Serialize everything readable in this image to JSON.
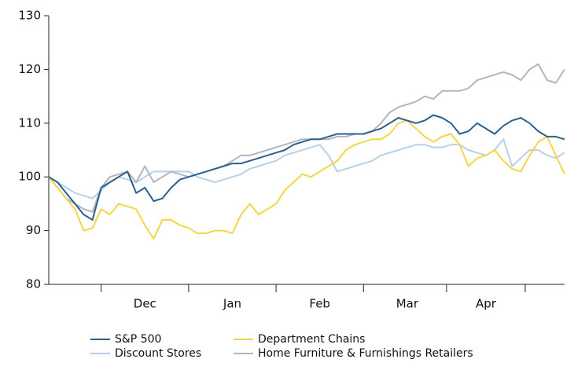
{
  "chart_data": {
    "type": "line",
    "categories": [
      null,
      null,
      null,
      null,
      null,
      null,
      null,
      null,
      null,
      null,
      null,
      "Dec",
      null,
      null,
      null,
      null,
      null,
      null,
      null,
      null,
      null,
      "Jan",
      null,
      null,
      null,
      null,
      null,
      null,
      null,
      null,
      null,
      "Feb",
      null,
      null,
      null,
      null,
      null,
      null,
      null,
      null,
      null,
      "Mar",
      null,
      null,
      null,
      null,
      null,
      null,
      null,
      null,
      "Apr",
      null,
      null,
      null,
      null,
      null,
      null,
      null,
      null,
      null
    ],
    "ylim": [
      80,
      130
    ],
    "yticks": [
      80,
      90,
      100,
      110,
      120,
      130
    ],
    "grid": false,
    "series": [
      {
        "name": "S&P 500",
        "color": "#2b5f8e",
        "values": [
          100,
          99,
          97,
          95,
          93,
          92,
          98,
          99,
          100,
          101,
          97,
          98,
          95.5,
          96,
          98,
          99.5,
          100,
          100.5,
          101,
          101.5,
          102,
          102.5,
          102.5,
          103,
          103.5,
          104,
          104.5,
          105,
          106,
          106.5,
          107,
          107,
          107.5,
          108,
          108,
          108,
          108,
          108.5,
          109,
          110,
          111,
          110.5,
          110,
          110.5,
          111.5,
          111,
          110,
          108,
          108.5,
          110,
          109,
          108,
          109.5,
          110.5,
          111,
          110,
          108.5,
          107.5,
          107.5,
          107
        ]
      },
      {
        "name": "Department Chains",
        "color": "#f5d547",
        "values": [
          100,
          98,
          96,
          94,
          90,
          90.5,
          94,
          93,
          95,
          94.5,
          94,
          91,
          88.5,
          92,
          92,
          91,
          90.5,
          89.5,
          89.5,
          90,
          90,
          89.5,
          93,
          95,
          93,
          94,
          95,
          97.5,
          99,
          100.5,
          100,
          101,
          102,
          103,
          105,
          106,
          106.5,
          107,
          107,
          108,
          110,
          110.5,
          109,
          107.5,
          106.5,
          107.5,
          108,
          106,
          102,
          103.5,
          104,
          105,
          103,
          101.5,
          101,
          104,
          106.5,
          107.5,
          104,
          100.5
        ]
      },
      {
        "name": "Discount Stores",
        "color": "#b8cfe6",
        "values": [
          100,
          99,
          98,
          97,
          96.5,
          96,
          97.5,
          99,
          100,
          99.5,
          99,
          100,
          101,
          101,
          101,
          101,
          101,
          100,
          99.5,
          99,
          99.5,
          100,
          100.5,
          101.5,
          102,
          102.5,
          103,
          104,
          104.5,
          105,
          105.5,
          106,
          104,
          101,
          101.5,
          102,
          102.5,
          103,
          104,
          104.5,
          105,
          105.5,
          106,
          106,
          105.5,
          105.5,
          106,
          106,
          105,
          104.5,
          104,
          105,
          107,
          102,
          103.5,
          105,
          105,
          104,
          103.5,
          104.5
        ]
      },
      {
        "name": "Home Furniture & Furnishings Retailers",
        "color": "#b4b4bc",
        "values": [
          100,
          98,
          96,
          95,
          94,
          93.5,
          98,
          100,
          100.5,
          101,
          99,
          102,
          99,
          100,
          101,
          100.5,
          100,
          100.5,
          101,
          101.5,
          102,
          103,
          104,
          104,
          104.5,
          105,
          105.5,
          106,
          106.5,
          107,
          107,
          107,
          107,
          107.5,
          107.5,
          108,
          108,
          108.5,
          110,
          112,
          113,
          113.5,
          114,
          115,
          114.5,
          116,
          116,
          116,
          116.5,
          118,
          118.5,
          119,
          119.5,
          119,
          118,
          120,
          121,
          118,
          117.5,
          120
        ]
      }
    ]
  }
}
